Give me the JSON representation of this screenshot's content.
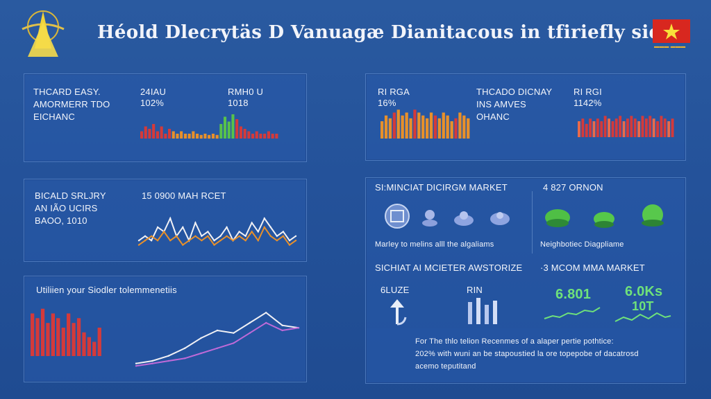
{
  "header": {
    "title": "Héold Dlecrytäs D Vanuagæ Dianitacous in tfiriefly sidily",
    "flag_caption": "▬▬▬ ▬▬▬"
  },
  "panels": {
    "p1": {
      "heading": [
        "THCARD EASY.",
        "AMORMERR TDO",
        "EICHANC"
      ],
      "col1_label": "24IAU",
      "col1_value": "102%",
      "col2_label": "RMH0 U",
      "col2_value": "1018"
    },
    "p2": {
      "col1_label": "RI RGA",
      "col1_value": "16%",
      "heading": [
        "THCADO DICNAY",
        "INS AMVES",
        "OHANC"
      ],
      "col2_label": "RI RGI",
      "col2_value": "1142%"
    },
    "p3": {
      "heading": [
        "BICALD SRLJRY",
        "AN IÃO UCIRS",
        "BAOO, 1010"
      ],
      "chart_label": "15 0900 MAH RCET"
    },
    "p4": {
      "heading": "SI:MINCIAT DICIRGM MARKET",
      "right_heading": "4 827 ORNON",
      "left_caption": "Marley to melins alll the algaliams",
      "right_caption": "Neighbotiec Diagpliame",
      "sub_heading": "SICHIAT AI MCIETER AWSTORIZE",
      "sub_right_heading": "·3 MCOM MMA MARKET",
      "m1": "6LUZE",
      "m2": "RIN",
      "m3": "6.801",
      "m4": "6.0Ks",
      "m4b": "10T"
    },
    "p5": {
      "heading": "Utiliien your Siodler tolemmenetiis"
    },
    "p6": {
      "lines": [
        "For The thlo telion Recenmes of a alaper pertie pothtice:",
        "202% with wuni an be stapoustied la ore topepobe of dacatrosd",
        "acemo teputitand"
      ]
    }
  },
  "colors": {
    "bg": "#24529a",
    "red": "#d43a3a",
    "orange": "#e8902a",
    "green": "#58c24a",
    "line": "#f1f1f5",
    "purple": "#c06ad8"
  },
  "chart_data": [
    {
      "type": "bar",
      "title": "THCARD EASY. AMORMERR TDO EICHANC",
      "x": [
        1,
        2,
        3,
        4,
        5,
        6,
        7,
        8,
        9,
        10,
        11,
        12,
        13,
        14,
        15,
        16,
        17,
        18,
        19,
        20,
        21,
        22,
        23,
        24,
        25,
        26,
        27,
        28,
        29,
        30,
        31,
        32,
        33,
        34,
        35
      ],
      "values": [
        3,
        5,
        4,
        6,
        3,
        5,
        2,
        4,
        3,
        2,
        3,
        2,
        2,
        3,
        2,
        1.5,
        2,
        1.5,
        2,
        1.5,
        6,
        9,
        7,
        10,
        8,
        5,
        4,
        3,
        2,
        3,
        2,
        2,
        3,
        2,
        2
      ],
      "ylim": [
        0,
        12
      ]
    },
    {
      "type": "bar",
      "title": "THCADO DICNAY INS AMVES OHANC",
      "x": [
        1,
        2,
        3,
        4,
        5,
        6,
        7,
        8,
        9,
        10,
        11,
        12,
        13,
        14,
        15,
        16,
        17,
        18,
        19,
        20,
        21,
        22
      ],
      "values": [
        6,
        8,
        7,
        9,
        10,
        8,
        9,
        7,
        10,
        9,
        8,
        7,
        9,
        8,
        7,
        9,
        8,
        6,
        7,
        9,
        8,
        7
      ],
      "ylim": [
        0,
        12
      ]
    },
    {
      "type": "bar",
      "title": "RI RGI",
      "x": [
        1,
        2,
        3,
        4,
        5,
        6,
        7,
        8,
        9,
        10,
        11,
        12,
        13,
        14,
        15,
        16,
        17,
        18,
        19,
        20,
        21,
        22,
        23,
        24,
        25,
        26
      ],
      "values": [
        6,
        7,
        5,
        7,
        6,
        7,
        6,
        8,
        7,
        6,
        7,
        8,
        6,
        7,
        8,
        7,
        6,
        8,
        7,
        8,
        7,
        6,
        8,
        7,
        6,
        7
      ],
      "ylim": [
        0,
        12
      ]
    },
    {
      "type": "line",
      "title": "15 0900 MAH RCET",
      "series": [
        {
          "name": "white",
          "x": [
            0,
            1,
            2,
            3,
            4,
            5,
            6,
            7,
            8,
            9,
            10,
            11,
            12,
            13,
            14,
            15,
            16,
            17,
            18,
            19,
            20,
            21,
            22,
            23,
            24,
            25
          ],
          "values": [
            2,
            3,
            2,
            5,
            4,
            7,
            3,
            5,
            2,
            6,
            3,
            4,
            2,
            3,
            5,
            2,
            4,
            3,
            6,
            4,
            7,
            5,
            3,
            4,
            2,
            3
          ]
        },
        {
          "name": "orange",
          "x": [
            0,
            1,
            2,
            3,
            4,
            5,
            6,
            7,
            8,
            9,
            10,
            11,
            12,
            13,
            14,
            15,
            16,
            17,
            18,
            19,
            20,
            21,
            22,
            23,
            24,
            25
          ],
          "values": [
            1,
            2,
            3,
            2,
            4,
            2,
            3,
            1,
            2,
            3,
            2,
            3,
            1,
            2,
            3,
            2,
            3,
            2,
            4,
            2,
            5,
            3,
            2,
            3,
            1,
            2
          ]
        }
      ],
      "ylim": [
        0,
        10
      ]
    },
    {
      "type": "bar",
      "title": "Utiliien your Siodler tolemmenetiis",
      "x": [
        1,
        2,
        3,
        4,
        5,
        6,
        7,
        8,
        9,
        10,
        11,
        12,
        13,
        14
      ],
      "values": [
        9,
        8,
        10,
        7,
        9,
        8,
        6,
        9,
        7,
        8,
        5,
        4,
        3,
        6
      ],
      "ylim": [
        0,
        12
      ]
    },
    {
      "type": "line",
      "title": "Utiliien your Siodler tolemmenetiis (trend)",
      "series": [
        {
          "name": "white",
          "x": [
            0,
            1,
            2,
            3,
            4,
            5,
            6,
            7,
            8,
            9,
            10
          ],
          "values": [
            1,
            1.5,
            2.5,
            4,
            6,
            7.5,
            7,
            9,
            11,
            8.5,
            8
          ]
        },
        {
          "name": "purple",
          "x": [
            0,
            1,
            2,
            3,
            4,
            5,
            6,
            7,
            8,
            9,
            10
          ],
          "values": [
            0.5,
            1,
            1.5,
            2,
            3,
            4,
            5,
            7,
            9,
            7.5,
            8
          ]
        }
      ],
      "ylim": [
        0,
        12
      ]
    }
  ]
}
